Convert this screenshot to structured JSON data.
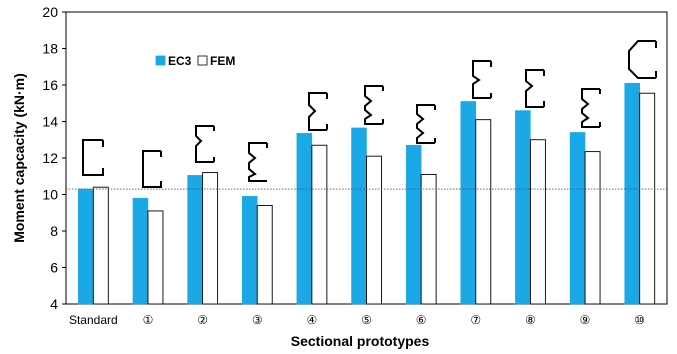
{
  "chart_data": {
    "type": "bar",
    "categories": [
      "Standard",
      "①",
      "②",
      "③",
      "④",
      "⑤",
      "⑥",
      "⑦",
      "⑧",
      "⑨",
      "⑩"
    ],
    "series": [
      {
        "name": "EC3",
        "values": [
          10.3,
          9.8,
          11.05,
          9.9,
          13.35,
          13.65,
          12.7,
          15.1,
          14.6,
          13.4,
          16.1
        ],
        "color": "#1aa9e6"
      },
      {
        "name": "FEM",
        "values": [
          10.4,
          9.1,
          11.2,
          9.4,
          12.7,
          12.1,
          11.1,
          14.1,
          13.0,
          12.35,
          15.55
        ],
        "color": "#ffffff"
      }
    ],
    "xlabel": "Sectional prototypes",
    "ylabel": "Moment capcacity (kN·m)",
    "ylim": [
      4,
      20
    ],
    "yticks": [
      4,
      6,
      8,
      10,
      12,
      14,
      16,
      18,
      20
    ],
    "reference_line": 10.3,
    "legend_position": "top-left",
    "grid": false
  }
}
